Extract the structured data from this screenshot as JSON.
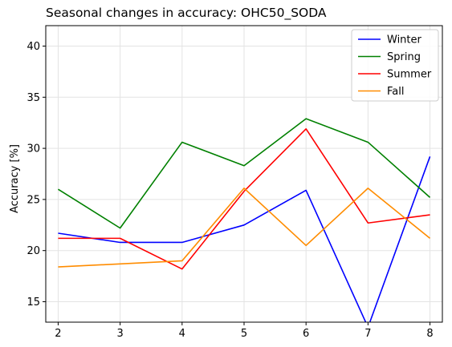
{
  "chart_data": {
    "type": "line",
    "title": "Seasonal changes in accuracy: OHC50_SODA",
    "xlabel": "",
    "ylabel": "Accuracy [%]",
    "x": [
      2,
      3,
      4,
      5,
      6,
      7,
      8
    ],
    "xlim": [
      1.8,
      8.2
    ],
    "ylim": [
      13,
      42
    ],
    "xticks": [
      2,
      3,
      4,
      5,
      6,
      7,
      8
    ],
    "yticks": [
      15,
      20,
      25,
      30,
      35,
      40
    ],
    "grid": true,
    "legend_position": "top-right",
    "series": [
      {
        "name": "Winter",
        "color": "#0000ff",
        "values": [
          21.7,
          20.8,
          20.8,
          22.5,
          25.9,
          12.5,
          29.2
        ]
      },
      {
        "name": "Spring",
        "color": "#008000",
        "values": [
          26.0,
          22.2,
          30.6,
          28.3,
          32.9,
          30.6,
          25.2
        ]
      },
      {
        "name": "Summer",
        "color": "#ff0000",
        "values": [
          21.2,
          21.2,
          18.2,
          25.8,
          31.9,
          22.7,
          23.5
        ]
      },
      {
        "name": "Fall",
        "color": "#ff8c00",
        "values": [
          18.4,
          18.7,
          19.0,
          26.1,
          20.5,
          26.1,
          21.2
        ]
      }
    ]
  }
}
